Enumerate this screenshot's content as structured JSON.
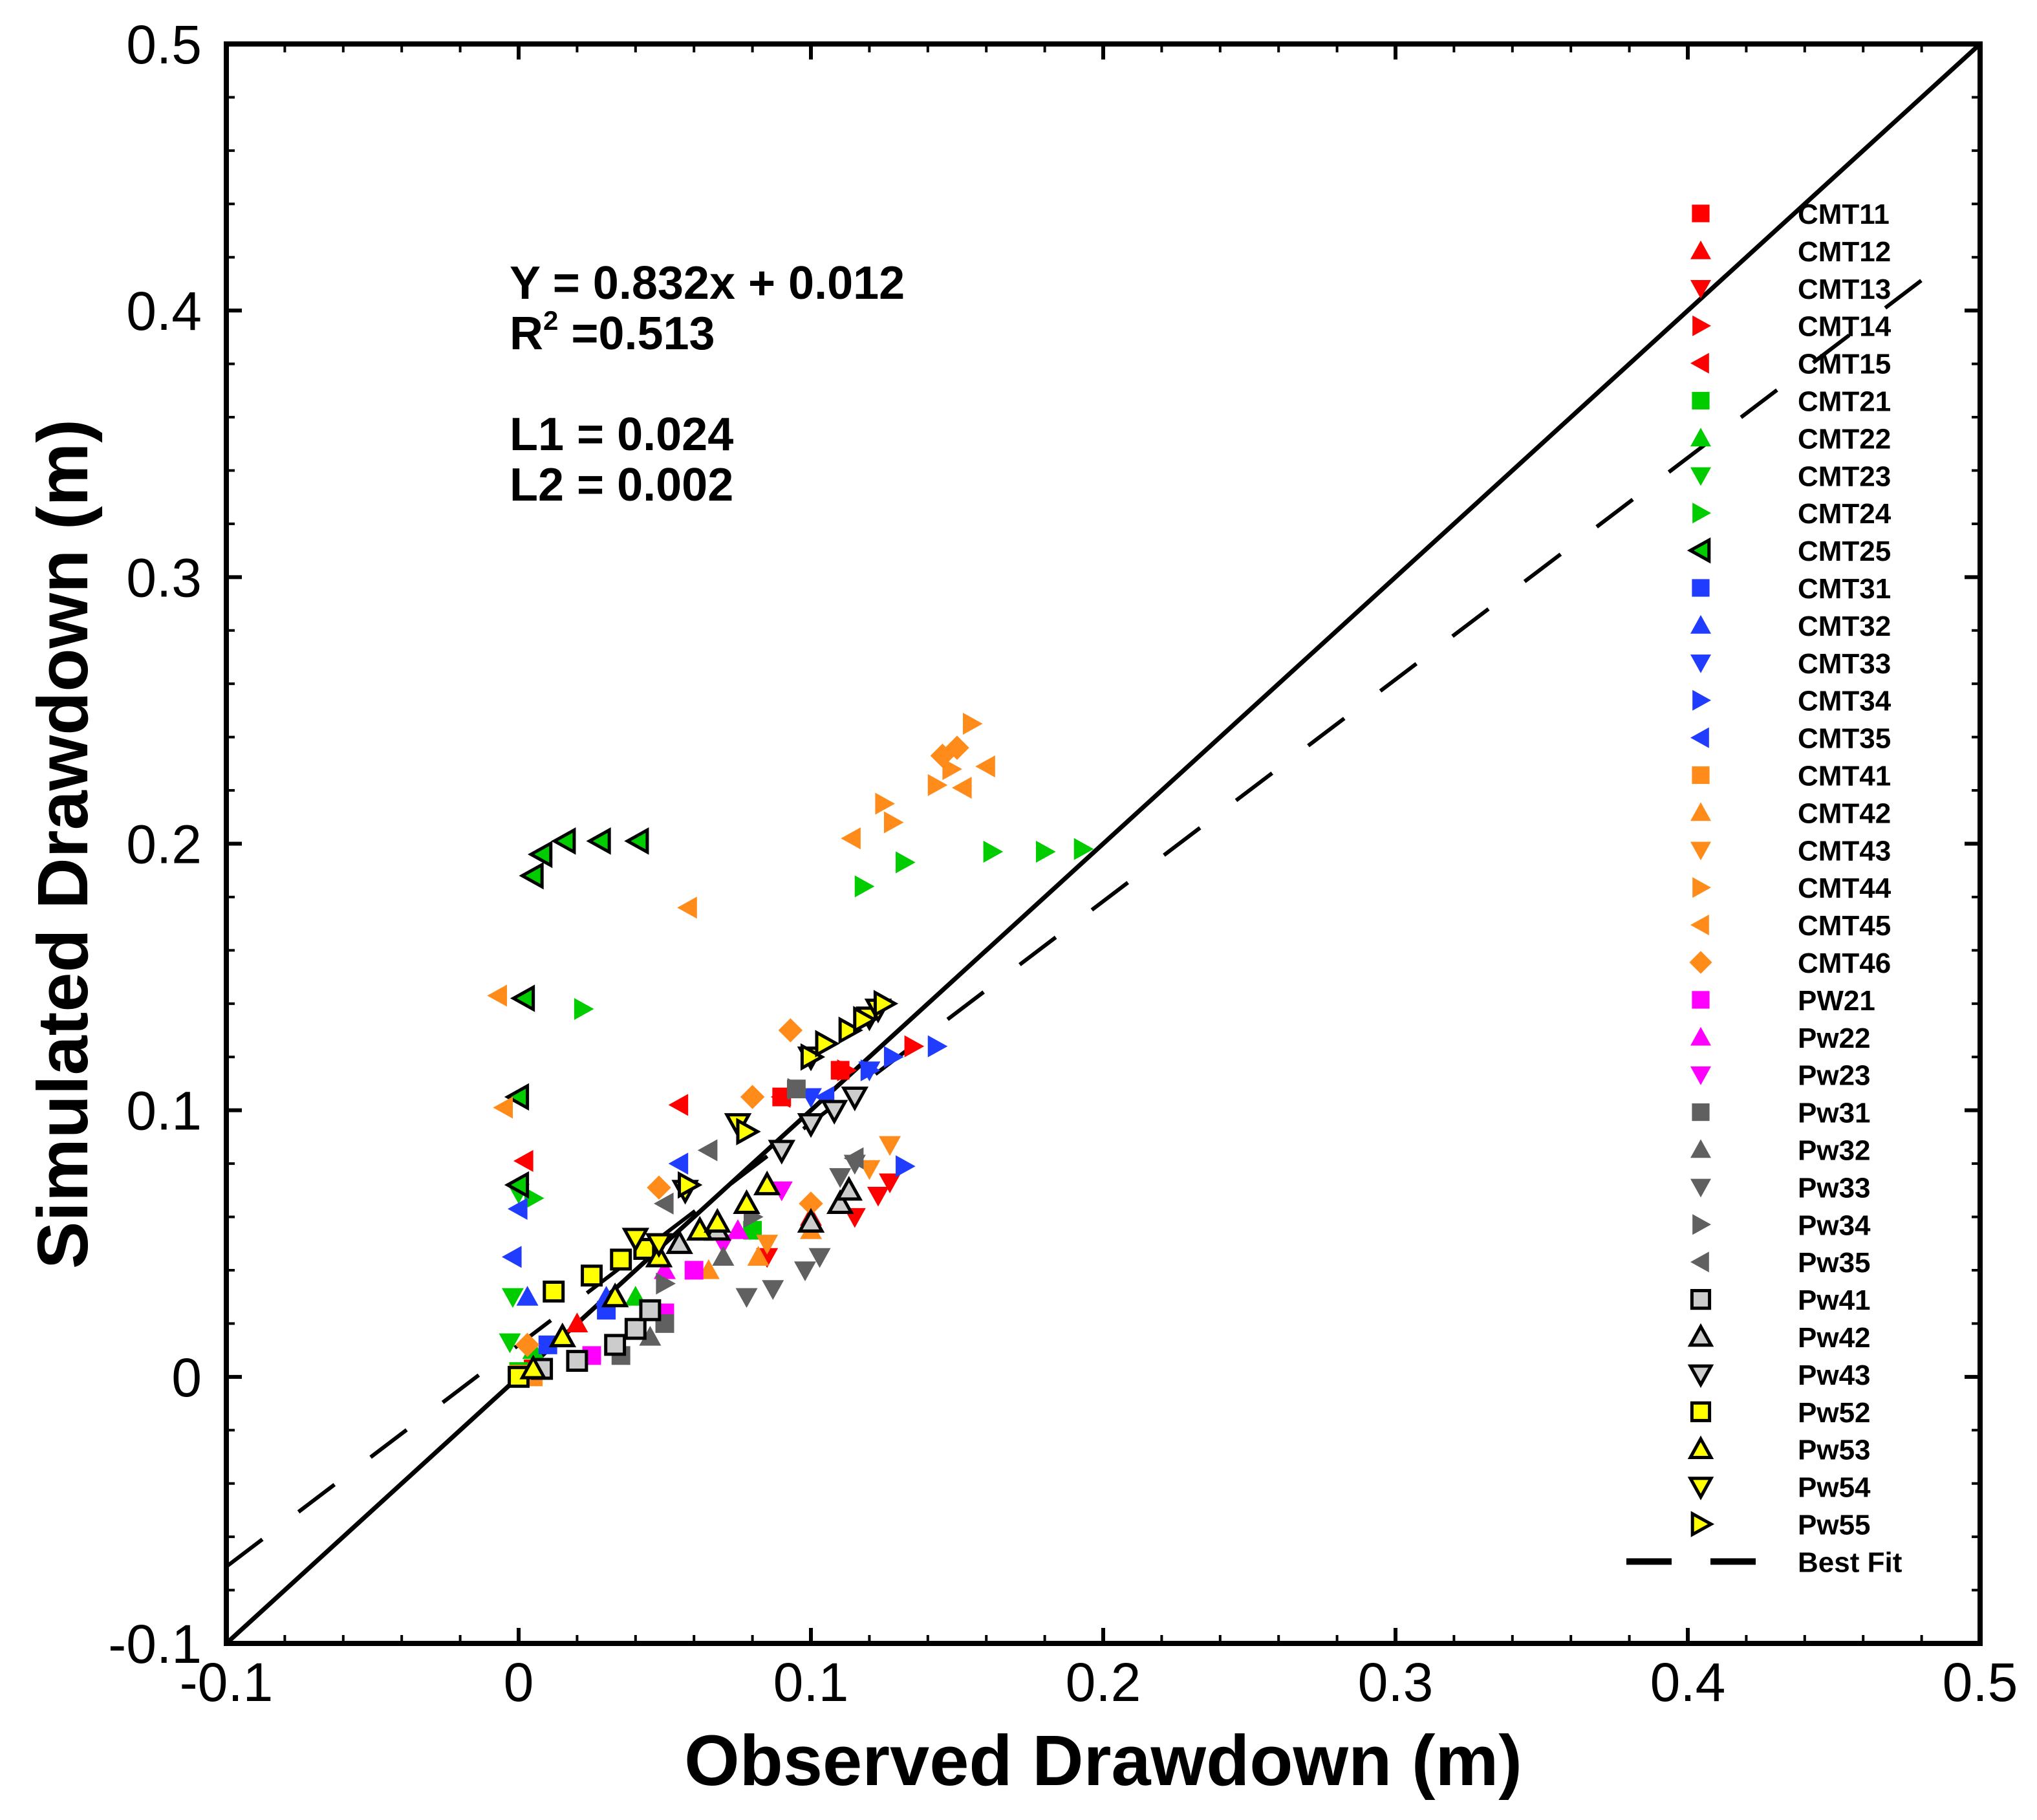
{
  "chart_data": {
    "type": "scatter",
    "title": "",
    "xlabel": "Observed Drawdown (m)",
    "ylabel": "Simulated Drawdown (m)",
    "xlim": [
      -0.1,
      0.5
    ],
    "ylim": [
      -0.1,
      0.5
    ],
    "x_ticks": [
      -0.1,
      0,
      0.1,
      0.2,
      0.3,
      0.4,
      0.5
    ],
    "y_ticks": [
      -0.1,
      0,
      0.1,
      0.2,
      0.3,
      0.4,
      0.5
    ],
    "x_tick_labels": [
      "-0.1",
      "0",
      "0.1",
      "0.2",
      "0.3",
      "0.4",
      "0.5"
    ],
    "y_tick_labels": [
      "-0.1",
      "0",
      "0.1",
      "0.2",
      "0.3",
      "0.4",
      "0.5"
    ],
    "grid": false,
    "legend_position": "right",
    "annotations": {
      "equation": "Y = 0.832x + 0.012",
      "r2_label": "R",
      "r2_sup": "2",
      "r2_value": " =0.513",
      "l1": "L1 = 0.024",
      "l2": "L2 = 0.002"
    },
    "one_to_one_line": {
      "x": [
        -0.1,
        0.5
      ],
      "y": [
        -0.1,
        0.5
      ]
    },
    "best_fit": {
      "name": "Best Fit",
      "slope": 0.832,
      "intercept": 0.012,
      "x_range": [
        -0.1,
        0.48
      ]
    },
    "series": [
      {
        "name": "CMT11",
        "color": "#ff0000",
        "marker": "square",
        "points": [
          [
            0.005,
            0.003
          ],
          [
            0.09,
            0.105
          ],
          [
            0.11,
            0.115
          ]
        ]
      },
      {
        "name": "CMT12",
        "color": "#ff0000",
        "marker": "triangle-up",
        "points": [
          [
            0.02,
            0.02
          ],
          [
            0.1,
            0.06
          ]
        ]
      },
      {
        "name": "CMT13",
        "color": "#ff0000",
        "marker": "triangle-down",
        "points": [
          [
            0.085,
            0.045
          ],
          [
            0.115,
            0.06
          ],
          [
            0.123,
            0.068
          ],
          [
            0.127,
            0.073
          ]
        ]
      },
      {
        "name": "CMT14",
        "color": "#ff0000",
        "marker": "triangle-right",
        "points": [
          [
            0.112,
            0.115
          ],
          [
            0.135,
            0.124
          ]
        ]
      },
      {
        "name": "CMT15",
        "color": "#ff0000",
        "marker": "triangle-left",
        "points": [
          [
            0.002,
            0.081
          ],
          [
            0.055,
            0.102
          ],
          [
            0.09,
            0.105
          ]
        ]
      },
      {
        "name": "CMT21",
        "color": "#00cc00",
        "marker": "square",
        "points": [
          [
            0.0,
            0.002
          ],
          [
            0.08,
            0.055
          ]
        ]
      },
      {
        "name": "CMT22",
        "color": "#00cc00",
        "marker": "triangle-up",
        "points": [
          [
            0.005,
            0.01
          ],
          [
            0.04,
            0.03
          ]
        ]
      },
      {
        "name": "CMT23",
        "color": "#00cc00",
        "marker": "triangle-down",
        "points": [
          [
            -0.002,
            0.03
          ],
          [
            -0.003,
            0.013
          ],
          [
            0.0,
            0.069
          ]
        ]
      },
      {
        "name": "CMT24",
        "color": "#00cc00",
        "marker": "triangle-right",
        "points": [
          [
            0.005,
            0.067
          ],
          [
            0.022,
            0.138
          ],
          [
            0.118,
            0.184
          ],
          [
            0.132,
            0.193
          ],
          [
            0.162,
            0.197
          ],
          [
            0.18,
            0.197
          ],
          [
            0.193,
            0.198
          ]
        ]
      },
      {
        "name": "CMT25",
        "color": "#00cc00",
        "marker": "triangle-left-outline",
        "points": [
          [
            0.0,
            0.072
          ],
          [
            0.0,
            0.105
          ],
          [
            0.002,
            0.142
          ],
          [
            0.005,
            0.188
          ],
          [
            0.008,
            0.196
          ],
          [
            0.016,
            0.201
          ],
          [
            0.028,
            0.201
          ],
          [
            0.041,
            0.201
          ]
        ]
      },
      {
        "name": "CMT31",
        "color": "#1f3cff",
        "marker": "square",
        "points": [
          [
            0.01,
            0.012
          ],
          [
            0.03,
            0.025
          ]
        ]
      },
      {
        "name": "CMT32",
        "color": "#1f3cff",
        "marker": "triangle-up",
        "points": [
          [
            0.003,
            0.03
          ],
          [
            0.03,
            0.03
          ]
        ]
      },
      {
        "name": "CMT33",
        "color": "#1f3cff",
        "marker": "triangle-down",
        "points": [
          [
            0.1,
            0.105
          ],
          [
            0.12,
            0.115
          ]
        ]
      },
      {
        "name": "CMT34",
        "color": "#1f3cff",
        "marker": "triangle-right",
        "points": [
          [
            0.12,
            0.115
          ],
          [
            0.128,
            0.12
          ],
          [
            0.143,
            0.124
          ],
          [
            0.132,
            0.079
          ]
        ]
      },
      {
        "name": "CMT35",
        "color": "#1f3cff",
        "marker": "triangle-left",
        "points": [
          [
            -0.002,
            0.045
          ],
          [
            0.0,
            0.063
          ],
          [
            0.055,
            0.08
          ],
          [
            0.105,
            0.105
          ]
        ]
      },
      {
        "name": "CMT41",
        "color": "#ff8c1a",
        "marker": "square",
        "points": [
          [
            0.0,
            0.001
          ],
          [
            0.005,
            0.0
          ]
        ]
      },
      {
        "name": "CMT42",
        "color": "#ff8c1a",
        "marker": "triangle-up",
        "points": [
          [
            0.065,
            0.04
          ],
          [
            0.082,
            0.045
          ],
          [
            0.1,
            0.055
          ]
        ]
      },
      {
        "name": "CMT43",
        "color": "#ff8c1a",
        "marker": "triangle-down",
        "points": [
          [
            0.127,
            0.087
          ],
          [
            0.115,
            0.08
          ],
          [
            0.12,
            0.078
          ],
          [
            0.085,
            0.05
          ]
        ]
      },
      {
        "name": "CMT44",
        "color": "#ff8c1a",
        "marker": "triangle-right",
        "points": [
          [
            0.125,
            0.215
          ],
          [
            0.128,
            0.208
          ],
          [
            0.143,
            0.222
          ],
          [
            0.148,
            0.228
          ],
          [
            0.155,
            0.245
          ]
        ]
      },
      {
        "name": "CMT45",
        "color": "#ff8c1a",
        "marker": "triangle-left",
        "points": [
          [
            -0.007,
            0.143
          ],
          [
            -0.005,
            0.101
          ],
          [
            0.058,
            0.176
          ],
          [
            0.114,
            0.202
          ],
          [
            0.152,
            0.221
          ],
          [
            0.16,
            0.229
          ]
        ]
      },
      {
        "name": "CMT46",
        "color": "#ff8c1a",
        "marker": "diamond",
        "points": [
          [
            0.08,
            0.105
          ],
          [
            0.093,
            0.13
          ],
          [
            0.048,
            0.071
          ],
          [
            0.003,
            0.012
          ],
          [
            0.15,
            0.236
          ],
          [
            0.145,
            0.233
          ],
          [
            0.1,
            0.065
          ]
        ]
      },
      {
        "name": "PW21",
        "color": "#ff00ff",
        "marker": "square",
        "points": [
          [
            0.025,
            0.008
          ],
          [
            0.05,
            0.024
          ],
          [
            0.06,
            0.04
          ]
        ]
      },
      {
        "name": "Pw22",
        "color": "#ff00ff",
        "marker": "triangle-up",
        "points": [
          [
            0.05,
            0.04
          ],
          [
            0.075,
            0.055
          ]
        ]
      },
      {
        "name": "Pw23",
        "color": "#ff00ff",
        "marker": "triangle-down",
        "points": [
          [
            0.07,
            0.05
          ],
          [
            0.09,
            0.07
          ]
        ]
      },
      {
        "name": "Pw31",
        "color": "#606060",
        "marker": "square",
        "points": [
          [
            0.035,
            0.008
          ],
          [
            0.05,
            0.02
          ],
          [
            0.095,
            0.108
          ]
        ]
      },
      {
        "name": "Pw32",
        "color": "#606060",
        "marker": "triangle-up",
        "points": [
          [
            0.045,
            0.015
          ],
          [
            0.07,
            0.045
          ]
        ]
      },
      {
        "name": "Pw33",
        "color": "#606060",
        "marker": "triangle-down",
        "points": [
          [
            0.078,
            0.03
          ],
          [
            0.087,
            0.033
          ],
          [
            0.098,
            0.04
          ],
          [
            0.103,
            0.045
          ],
          [
            0.115,
            0.08
          ],
          [
            0.11,
            0.075
          ]
        ]
      },
      {
        "name": "Pw34",
        "color": "#606060",
        "marker": "triangle-right",
        "points": [
          [
            0.05,
            0.035
          ],
          [
            0.08,
            0.06
          ],
          [
            0.095,
            0.108
          ]
        ]
      },
      {
        "name": "Pw35",
        "color": "#606060",
        "marker": "triangle-left",
        "points": [
          [
            0.065,
            0.085
          ],
          [
            0.05,
            0.065
          ],
          [
            0.115,
            0.082
          ]
        ]
      },
      {
        "name": "Pw41",
        "color": "#cccccc",
        "marker": "square-outline",
        "points": [
          [
            0.008,
            0.003
          ],
          [
            0.02,
            0.006
          ],
          [
            0.033,
            0.012
          ],
          [
            0.04,
            0.018
          ],
          [
            0.045,
            0.025
          ]
        ]
      },
      {
        "name": "Pw42",
        "color": "#cccccc",
        "marker": "triangle-up-outline",
        "points": [
          [
            0.055,
            0.05
          ],
          [
            0.068,
            0.055
          ],
          [
            0.1,
            0.058
          ],
          [
            0.11,
            0.065
          ],
          [
            0.113,
            0.07
          ]
        ]
      },
      {
        "name": "Pw43",
        "color": "#cccccc",
        "marker": "triangle-down-outline",
        "points": [
          [
            0.09,
            0.085
          ],
          [
            0.1,
            0.095
          ],
          [
            0.108,
            0.1
          ],
          [
            0.115,
            0.105
          ]
        ]
      },
      {
        "name": "Pw52",
        "color": "#ffff00",
        "marker": "square-outline",
        "points": [
          [
            0.0,
            0.0
          ],
          [
            0.012,
            0.032
          ],
          [
            0.025,
            0.038
          ],
          [
            0.035,
            0.044
          ],
          [
            0.043,
            0.048
          ]
        ]
      },
      {
        "name": "Pw53",
        "color": "#ffff00",
        "marker": "triangle-up-outline",
        "points": [
          [
            0.005,
            0.003
          ],
          [
            0.015,
            0.015
          ],
          [
            0.033,
            0.03
          ],
          [
            0.048,
            0.045
          ],
          [
            0.062,
            0.055
          ],
          [
            0.068,
            0.058
          ],
          [
            0.085,
            0.072
          ],
          [
            0.078,
            0.065
          ]
        ]
      },
      {
        "name": "Pw54",
        "color": "#ffff00",
        "marker": "triangle-down-outline",
        "points": [
          [
            0.04,
            0.052
          ],
          [
            0.048,
            0.05
          ],
          [
            0.057,
            0.07
          ],
          [
            0.075,
            0.095
          ],
          [
            0.1,
            0.12
          ],
          [
            0.12,
            0.135
          ],
          [
            0.123,
            0.138
          ]
        ]
      },
      {
        "name": "Pw55",
        "color": "#ffff00",
        "marker": "triangle-right-outline",
        "points": [
          [
            0.058,
            0.072
          ],
          [
            0.078,
            0.092
          ],
          [
            0.1,
            0.12
          ],
          [
            0.105,
            0.125
          ],
          [
            0.113,
            0.13
          ],
          [
            0.118,
            0.134
          ],
          [
            0.125,
            0.14
          ]
        ]
      }
    ]
  }
}
